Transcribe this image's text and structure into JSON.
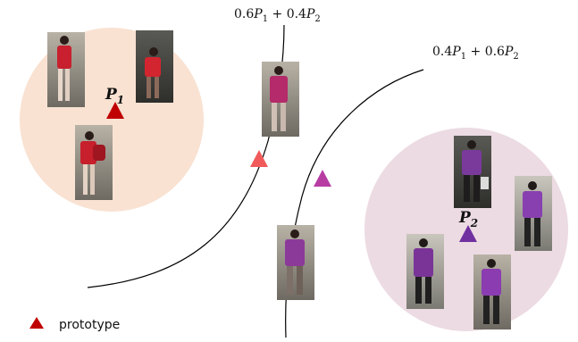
{
  "labels": {
    "mix_top_coef1": "0.6",
    "mix_top_sym1": "P",
    "mix_top_sub1": "1",
    "mix_top_plus": " + 0.4",
    "mix_top_sym2": "P",
    "mix_top_sub2": "2",
    "mix_right_coef1": "0.4",
    "mix_right_sym1": "P",
    "mix_right_sub1": "1",
    "mix_right_plus": " + 0.6",
    "mix_right_sym2": "P",
    "mix_right_sub2": "2",
    "prototype1_sym": "P",
    "prototype1_sub": "1",
    "prototype2_sym": "P",
    "prototype2_sub": "2"
  },
  "legend": {
    "label": "prototype"
  },
  "colors": {
    "cluster1_fill": "#f9e2d2",
    "cluster2_fill": "#ecdbe2",
    "prototype1": "#c00000",
    "prototype2": "#7030a0",
    "mix_06_04": "#f05a5a",
    "mix_04_06": "#b73da3",
    "legend_marker": "#c00000",
    "curve": "#000000"
  }
}
